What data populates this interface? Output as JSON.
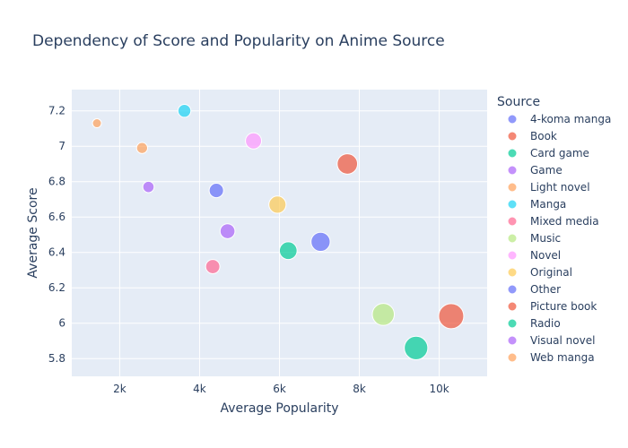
{
  "chart_data": {
    "type": "scatter",
    "title": "Dependency of Score and Popularity on Anime Source",
    "xlabel": "Average Popularity",
    "ylabel": "Average Score",
    "xlim": [
      800,
      11200
    ],
    "ylim": [
      5.7,
      7.32
    ],
    "x_ticks": [
      2000,
      4000,
      6000,
      8000,
      10000
    ],
    "x_tick_labels": [
      "2k",
      "4k",
      "6k",
      "8k",
      "10k"
    ],
    "y_ticks": [
      5.8,
      6,
      6.2,
      6.4,
      6.6,
      6.8,
      7,
      7.2
    ],
    "y_tick_labels": [
      "5.8",
      "6",
      "6.2",
      "6.4",
      "6.6",
      "6.8",
      "7",
      "7.2"
    ],
    "grid": true,
    "legend_title": "Source",
    "legend_position": "right",
    "series": [
      {
        "name": "4-koma manga",
        "color": "#636efa",
        "x": [
          4420
        ],
        "y": [
          6.75
        ]
      },
      {
        "name": "Book",
        "color": "#EF553B",
        "x": [
          7700
        ],
        "y": [
          6.9
        ]
      },
      {
        "name": "Card game",
        "color": "#00cc96",
        "x": [
          6220
        ],
        "y": [
          6.41
        ]
      },
      {
        "name": "Game",
        "color": "#ab63fa",
        "x": [
          4700
        ],
        "y": [
          6.52
        ]
      },
      {
        "name": "Light novel",
        "color": "#FFA15A",
        "x": [
          2560
        ],
        "y": [
          6.99
        ]
      },
      {
        "name": "Manga",
        "color": "#19d3f3",
        "x": [
          3620
        ],
        "y": [
          7.2
        ]
      },
      {
        "name": "Mixed media",
        "color": "#FF6692",
        "x": [
          4330
        ],
        "y": [
          6.32
        ]
      },
      {
        "name": "Music",
        "color": "#B6E880",
        "x": [
          8600
        ],
        "y": [
          6.05
        ]
      },
      {
        "name": "Novel",
        "color": "#FF97FF",
        "x": [
          5350
        ],
        "y": [
          7.03
        ]
      },
      {
        "name": "Original",
        "color": "#FECB52",
        "x": [
          5950
        ],
        "y": [
          6.67
        ]
      },
      {
        "name": "Other",
        "color": "#636efa",
        "x": [
          7030
        ],
        "y": [
          6.46
        ]
      },
      {
        "name": "Picture book",
        "color": "#EF553B",
        "x": [
          10300
        ],
        "y": [
          6.04
        ]
      },
      {
        "name": "Radio",
        "color": "#00cc96",
        "x": [
          9420
        ],
        "y": [
          5.86
        ]
      },
      {
        "name": "Visual novel",
        "color": "#ab63fa",
        "x": [
          2720
        ],
        "y": [
          6.77
        ]
      },
      {
        "name": "Web manga",
        "color": "#FFA15A",
        "x": [
          1430
        ],
        "y": [
          7.13
        ]
      }
    ]
  }
}
